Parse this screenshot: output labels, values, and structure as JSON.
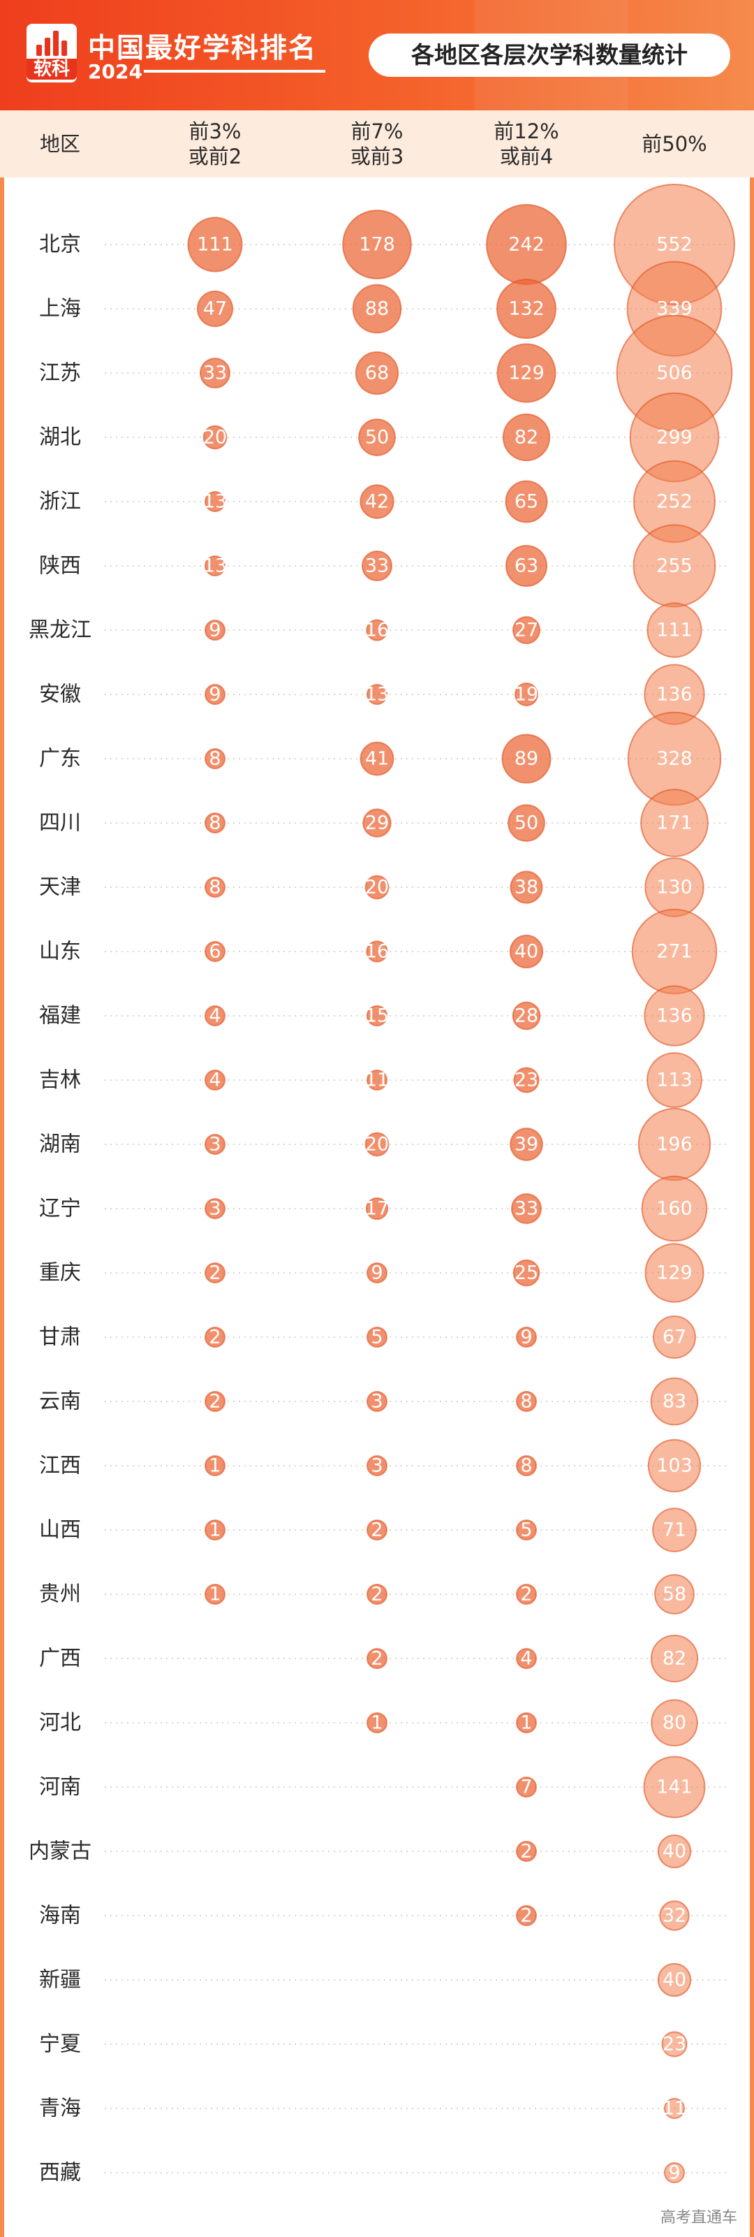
{
  "header": {
    "brand_title": "中国最好学科排名",
    "brand_year": "2024",
    "logo_text": "软科",
    "chart_title": "各地区各层次学科数量统计"
  },
  "colors": {
    "accent": "#ef3e1d",
    "bubble": "#ec6535",
    "header_band": "#fdebdd"
  },
  "source_label": "高考直通车",
  "chart_data": {
    "type": "bubble",
    "title": "各地区各层次学科数量统计",
    "row_header": "地区",
    "columns": [
      {
        "key": "top3",
        "label_lines": [
          "前3%",
          "或前2"
        ]
      },
      {
        "key": "top7",
        "label_lines": [
          "前7%",
          "或前3"
        ]
      },
      {
        "key": "top12",
        "label_lines": [
          "前12%",
          "或前4"
        ]
      },
      {
        "key": "top50",
        "label_lines": [
          "前50%"
        ]
      }
    ],
    "rows": [
      {
        "region": "北京",
        "values": [
          111,
          178,
          242,
          552
        ]
      },
      {
        "region": "上海",
        "values": [
          47,
          88,
          132,
          339
        ]
      },
      {
        "region": "江苏",
        "values": [
          33,
          68,
          129,
          506
        ]
      },
      {
        "region": "湖北",
        "values": [
          20,
          50,
          82,
          299
        ]
      },
      {
        "region": "浙江",
        "values": [
          13,
          42,
          65,
          252
        ]
      },
      {
        "region": "陕西",
        "values": [
          13,
          33,
          63,
          255
        ]
      },
      {
        "region": "黑龙江",
        "values": [
          9,
          16,
          27,
          111
        ]
      },
      {
        "region": "安徽",
        "values": [
          9,
          13,
          19,
          136
        ]
      },
      {
        "region": "广东",
        "values": [
          8,
          41,
          89,
          328
        ]
      },
      {
        "region": "四川",
        "values": [
          8,
          29,
          50,
          171
        ]
      },
      {
        "region": "天津",
        "values": [
          8,
          20,
          38,
          130
        ]
      },
      {
        "region": "山东",
        "values": [
          6,
          16,
          40,
          271
        ]
      },
      {
        "region": "福建",
        "values": [
          4,
          15,
          28,
          136
        ]
      },
      {
        "region": "吉林",
        "values": [
          4,
          11,
          23,
          113
        ]
      },
      {
        "region": "湖南",
        "values": [
          3,
          20,
          39,
          196
        ]
      },
      {
        "region": "辽宁",
        "values": [
          3,
          17,
          33,
          160
        ]
      },
      {
        "region": "重庆",
        "values": [
          2,
          9,
          25,
          129
        ]
      },
      {
        "region": "甘肃",
        "values": [
          2,
          5,
          9,
          67
        ]
      },
      {
        "region": "云南",
        "values": [
          2,
          3,
          8,
          83
        ]
      },
      {
        "region": "江西",
        "values": [
          1,
          3,
          8,
          103
        ]
      },
      {
        "region": "山西",
        "values": [
          1,
          2,
          5,
          71
        ]
      },
      {
        "region": "贵州",
        "values": [
          1,
          2,
          2,
          58
        ]
      },
      {
        "region": "广西",
        "values": [
          null,
          2,
          4,
          82
        ]
      },
      {
        "region": "河北",
        "values": [
          null,
          1,
          1,
          80
        ]
      },
      {
        "region": "河南",
        "values": [
          null,
          null,
          7,
          141
        ]
      },
      {
        "region": "内蒙古",
        "values": [
          null,
          null,
          2,
          40
        ]
      },
      {
        "region": "海南",
        "values": [
          null,
          null,
          2,
          32
        ]
      },
      {
        "region": "新疆",
        "values": [
          null,
          null,
          null,
          40
        ]
      },
      {
        "region": "宁夏",
        "values": [
          null,
          null,
          null,
          23
        ]
      },
      {
        "region": "青海",
        "values": [
          null,
          null,
          null,
          11
        ]
      },
      {
        "region": "西藏",
        "values": [
          null,
          null,
          null,
          9
        ]
      }
    ]
  }
}
